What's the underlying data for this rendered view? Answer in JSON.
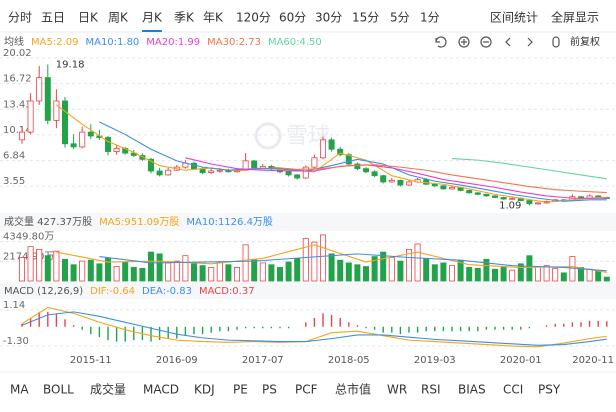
{
  "tabs": [
    "分时",
    "五日",
    "日K",
    "周K",
    "月K",
    "季K",
    "年K",
    "120分",
    "60分",
    "30分",
    "15分",
    "5分",
    "1分"
  ],
  "active_tab": 4,
  "links": [
    "区间统计",
    "全屏显示"
  ],
  "adjust": "前复权",
  "watermark": "雪球",
  "chart_data": [
    {
      "type": "candlestick",
      "legend_title": "均线",
      "up_color": "#ec4246",
      "down_color": "#22a34a",
      "open": [
        9.5,
        10.5,
        14.5,
        17.5,
        12.0,
        14.5,
        9.0,
        8.6,
        10.5,
        10.0,
        9.8,
        8.0,
        8.4,
        7.8,
        7.5,
        7.0,
        5.5,
        5.0,
        5.6,
        6.0,
        6.5,
        5.8,
        5.3,
        5.5,
        5.6,
        5.4,
        5.6,
        6.8,
        5.9,
        6.1,
        5.8,
        5.4,
        5.0,
        4.6,
        6.0,
        7.2,
        9.5,
        8.3,
        7.6,
        6.4,
        5.8,
        5.4,
        4.9,
        4.1,
        4.3,
        3.7,
        4.1,
        4.4,
        3.8,
        3.6,
        3.2,
        3.4,
        3.0,
        2.7,
        2.5,
        2.3,
        2.1,
        1.9,
        2.0,
        1.7,
        1.3,
        1.4,
        1.6,
        1.8,
        1.7,
        2.2,
        2.0,
        2.3,
        2.1
      ],
      "high": [
        11.2,
        15.5,
        19.0,
        19.18,
        16.0,
        15.0,
        10.2,
        11.2,
        11.5,
        10.8,
        10.0,
        8.9,
        8.6,
        8.2,
        7.8,
        7.2,
        5.9,
        5.9,
        6.3,
        6.9,
        6.7,
        6.0,
        5.8,
        5.9,
        5.8,
        5.9,
        7.8,
        6.9,
        6.4,
        6.3,
        5.9,
        5.5,
        5.1,
        6.2,
        7.6,
        9.9,
        9.8,
        8.6,
        7.8,
        6.6,
        6.0,
        5.6,
        5.0,
        4.6,
        4.4,
        4.3,
        4.6,
        4.6,
        3.9,
        3.7,
        3.6,
        3.5,
        3.1,
        2.8,
        2.6,
        2.4,
        2.2,
        2.1,
        2.1,
        1.8,
        1.5,
        1.7,
        1.9,
        1.9,
        2.5,
        2.3,
        2.5,
        2.4,
        2.2
      ],
      "low": [
        9.0,
        10.2,
        14.0,
        11.5,
        11.0,
        8.5,
        8.3,
        8.4,
        9.6,
        9.5,
        7.5,
        7.6,
        7.6,
        7.3,
        6.8,
        5.2,
        4.8,
        4.9,
        5.5,
        5.8,
        5.7,
        5.1,
        5.1,
        5.3,
        5.3,
        5.3,
        5.5,
        5.7,
        5.8,
        5.6,
        5.2,
        4.8,
        4.4,
        4.5,
        5.8,
        7.0,
        8.0,
        7.4,
        6.2,
        5.6,
        5.2,
        4.7,
        3.9,
        4.0,
        3.5,
        3.6,
        4.0,
        3.7,
        3.4,
        3.1,
        3.1,
        2.9,
        2.6,
        2.4,
        2.2,
        2.0,
        1.8,
        1.8,
        1.6,
        1.09,
        1.2,
        1.3,
        1.5,
        1.6,
        1.6,
        1.9,
        1.9,
        2.0,
        2.0
      ],
      "close": [
        10.5,
        14.5,
        17.5,
        12.0,
        14.5,
        9.0,
        8.6,
        10.5,
        10.0,
        9.8,
        8.0,
        8.4,
        7.8,
        7.5,
        7.0,
        5.5,
        5.0,
        5.6,
        6.0,
        6.5,
        5.8,
        5.3,
        5.5,
        5.6,
        5.4,
        5.6,
        6.8,
        5.9,
        6.1,
        5.8,
        5.4,
        5.0,
        4.6,
        6.0,
        7.2,
        9.5,
        8.3,
        7.6,
        6.4,
        5.8,
        5.4,
        4.9,
        4.1,
        4.3,
        3.7,
        4.1,
        4.4,
        3.8,
        3.6,
        3.2,
        3.4,
        3.0,
        2.7,
        2.5,
        2.3,
        2.1,
        1.9,
        2.0,
        1.7,
        1.3,
        1.4,
        1.6,
        1.8,
        1.7,
        2.2,
        2.0,
        2.3,
        2.1,
        2.09
      ],
      "series": [
        {
          "name": "MA5:2.09",
          "color": "#f5a31b",
          "x": [
            4,
            7,
            10,
            13,
            16,
            19,
            22,
            25,
            28,
            31,
            34,
            37,
            40,
            43,
            46,
            49,
            52,
            55,
            58,
            61,
            64,
            67,
            68
          ],
          "values": [
            14.0,
            11.5,
            9.3,
            7.9,
            6.2,
            5.6,
            5.9,
            5.5,
            5.9,
            5.6,
            5.4,
            7.8,
            6.9,
            4.9,
            4.1,
            3.8,
            3.2,
            2.5,
            2.0,
            1.5,
            1.8,
            2.1,
            2.09
          ]
        },
        {
          "name": "MA10:1.80",
          "color": "#3c8fe6",
          "x": [
            9,
            12,
            15,
            18,
            21,
            24,
            27,
            30,
            33,
            36,
            39,
            42,
            45,
            48,
            51,
            54,
            57,
            60,
            63,
            66,
            68
          ],
          "values": [
            11.8,
            10.2,
            8.3,
            6.8,
            6.0,
            5.6,
            5.8,
            5.8,
            5.5,
            6.2,
            7.0,
            6.4,
            5.0,
            4.2,
            3.7,
            3.1,
            2.5,
            2.0,
            1.6,
            1.8,
            1.8
          ]
        },
        {
          "name": "MA20:1.99",
          "color": "#e53fd3",
          "x": [
            19,
            22,
            25,
            28,
            31,
            34,
            37,
            40,
            43,
            46,
            49,
            52,
            55,
            58,
            61,
            64,
            68
          ],
          "values": [
            7.2,
            6.4,
            5.8,
            5.6,
            5.5,
            5.5,
            6.1,
            6.3,
            5.9,
            5.2,
            4.4,
            3.9,
            3.4,
            2.8,
            2.3,
            2.0,
            1.99
          ]
        },
        {
          "name": "MA30:2.73",
          "color": "#f2754b",
          "x": [
            29,
            32,
            35,
            38,
            41,
            44,
            47,
            50,
            53,
            56,
            59,
            62,
            65,
            68
          ],
          "values": [
            6.0,
            5.7,
            5.8,
            6.2,
            6.3,
            6.0,
            5.6,
            5.0,
            4.5,
            4.0,
            3.5,
            3.1,
            2.9,
            2.73
          ]
        },
        {
          "name": "MA60:4.50",
          "color": "#63d39c",
          "x": [
            50,
            53,
            56,
            59,
            62,
            65,
            68
          ],
          "values": [
            7.1,
            6.9,
            6.5,
            6.0,
            5.5,
            5.0,
            4.5
          ]
        }
      ],
      "annotations": [
        {
          "text": "19.18",
          "x": 3,
          "y": 19.18
        },
        {
          "text": "1.09",
          "x": 59,
          "y": 1.09
        }
      ],
      "ylim": [
        0.62,
        20.66
      ],
      "yticks": [
        20.02,
        16.72,
        13.43,
        10.14,
        6.84,
        3.55
      ],
      "grid": true
    },
    {
      "type": "bar",
      "title": "成交量 427.37万股",
      "values": [
        2600,
        3800,
        3500,
        2800,
        3300,
        2400,
        1800,
        2200,
        2300,
        1900,
        2500,
        1600,
        2100,
        1500,
        1400,
        3200,
        3000,
        2000,
        2200,
        2800,
        1900,
        1700,
        1500,
        2100,
        1800,
        1500,
        4000,
        2400,
        2000,
        1800,
        1500,
        2100,
        2500,
        4700,
        4300,
        5100,
        3000,
        2300,
        2000,
        1800,
        1600,
        2700,
        3200,
        2600,
        2200,
        3500,
        4100,
        2500,
        1800,
        2000,
        1700,
        2300,
        1500,
        1400,
        2400,
        1300,
        1500,
        1200,
        1900,
        2800,
        1600,
        1700,
        1400,
        900,
        2700,
        1500,
        1300,
        1100,
        427.37
      ],
      "series": [
        {
          "name": "MA5:951.09万股",
          "color": "#f5a31b",
          "x": [
            4,
            10,
            16,
            22,
            28,
            34,
            40,
            46,
            52,
            58,
            64,
            68
          ],
          "values": [
            3200,
            2100,
            2200,
            1900,
            2500,
            4000,
            2100,
            3200,
            1800,
            1500,
            1600,
            951.09
          ]
        },
        {
          "name": "MA10:1126.4万股",
          "color": "#3c8fe6",
          "x": [
            9,
            15,
            21,
            27,
            33,
            39,
            45,
            51,
            57,
            63,
            68
          ],
          "values": [
            2700,
            2000,
            2100,
            2200,
            2600,
            3000,
            2600,
            2300,
            1700,
            1500,
            1126.4
          ]
        }
      ],
      "ylim": [
        0,
        5200
      ],
      "yticks": [
        {
          "value": 4349.8,
          "label": "4349.80万"
        },
        {
          "value": 2174.9,
          "label": "2174.90万"
        }
      ],
      "grid": true
    },
    {
      "type": "macd",
      "title": "MACD (12,26,9)",
      "hist_name": "MACD:0.37",
      "hist_color": "#ec4246",
      "up_color": "#ec4246",
      "down_color": "#22a34a",
      "values": [
        0.2,
        0.6,
        1.0,
        1.0,
        0.9,
        0.5,
        0.1,
        -0.2,
        -0.5,
        -0.7,
        -0.9,
        -1.0,
        -1.0,
        -0.9,
        -0.9,
        -1.0,
        -0.9,
        -0.8,
        -0.8,
        -0.6,
        -0.5,
        -0.5,
        -0.4,
        -0.3,
        -0.3,
        -0.2,
        -0.1,
        -0.1,
        -0.1,
        -0.1,
        -0.1,
        -0.1,
        0.0,
        0.3,
        0.6,
        0.9,
        0.8,
        0.6,
        0.3,
        0.1,
        -0.1,
        -0.2,
        -0.4,
        -0.4,
        -0.5,
        -0.4,
        -0.4,
        -0.3,
        -0.3,
        -0.3,
        -0.3,
        -0.3,
        -0.3,
        -0.3,
        -0.2,
        -0.2,
        -0.2,
        -0.2,
        -0.2,
        -0.1,
        0.0,
        0.1,
        0.2,
        0.2,
        0.3,
        0.3,
        0.4,
        0.4,
        0.37
      ],
      "series": [
        {
          "name": "DIF:-0.64",
          "color": "#f5a31b",
          "x": [
            0,
            3,
            6,
            9,
            12,
            15,
            18,
            21,
            24,
            27,
            30,
            33,
            36,
            39,
            42,
            45,
            48,
            51,
            54,
            57,
            60,
            63,
            66,
            68
          ],
          "values": [
            0.2,
            1.3,
            0.9,
            0.3,
            -0.2,
            -0.6,
            -0.9,
            -1.0,
            -1.05,
            -1.0,
            -1.05,
            -1.0,
            -0.4,
            -0.3,
            -0.6,
            -0.9,
            -1.0,
            -1.1,
            -1.2,
            -1.3,
            -1.35,
            -1.1,
            -0.8,
            -0.64
          ]
        },
        {
          "name": "DEA:-0.83",
          "color": "#3c8fe6",
          "x": [
            0,
            3,
            6,
            9,
            12,
            15,
            18,
            21,
            24,
            27,
            30,
            33,
            36,
            39,
            42,
            45,
            48,
            51,
            54,
            57,
            60,
            63,
            66,
            68
          ],
          "values": [
            0.1,
            0.8,
            1.0,
            0.7,
            0.3,
            -0.1,
            -0.5,
            -0.75,
            -0.9,
            -0.95,
            -1.0,
            -1.0,
            -0.8,
            -0.55,
            -0.55,
            -0.7,
            -0.85,
            -0.95,
            -1.05,
            -1.15,
            -1.25,
            -1.2,
            -1.0,
            -0.83
          ]
        }
      ],
      "categories": [
        null,
        null,
        null,
        null,
        null,
        null,
        null,
        null,
        "2015-11",
        null,
        null,
        null,
        null,
        null,
        null,
        null,
        null,
        null,
        "2016-09",
        null,
        null,
        null,
        null,
        null,
        null,
        null,
        null,
        null,
        "2017-07",
        null,
        null,
        null,
        null,
        null,
        null,
        null,
        null,
        null,
        "2018-05",
        null,
        null,
        null,
        null,
        null,
        null,
        null,
        null,
        null,
        "2019-03",
        null,
        null,
        null,
        null,
        null,
        null,
        null,
        null,
        null,
        "2020-01",
        null,
        null,
        null,
        null,
        null,
        null,
        null,
        null,
        null,
        "2020-11"
      ],
      "ylim": [
        -1.7,
        1.8
      ],
      "yticks": [
        1.14,
        {
          "value": -1.3,
          "label": "-1.30"
        }
      ],
      "grid": true
    }
  ],
  "indicator_tabs": [
    "MA",
    "BOLL",
    "成交量",
    "MACD",
    "KDJ",
    "PE",
    "PS",
    "PCF",
    "总市值",
    "WR",
    "RSI",
    "BIAS",
    "CCI",
    "PSY"
  ],
  "active_indicators": [
    0,
    2,
    3
  ]
}
